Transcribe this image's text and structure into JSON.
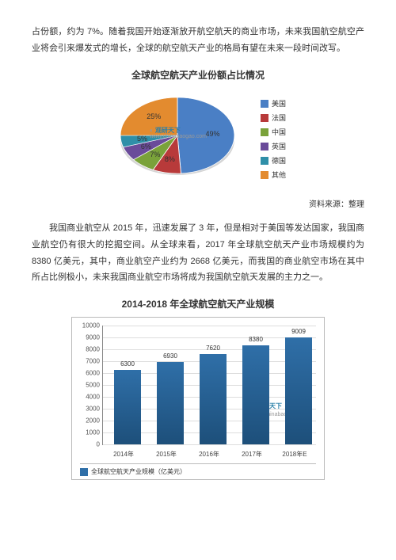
{
  "para1": "占份额，约为 7%。随着我国开始逐渐放开航空航天的商业市场，未来我国航空航空产业将会引来爆发式的增长，全球的航空航天产业的格局有望在未来一段时间改写。",
  "para2": "我国商业航空从 2015 年，迅速发展了 3 年，但是相对于美国等发达国家，我国商业航空仍有很大的挖掘空间。从全球来看，2017 年全球航空航天产业市场规模约为 8380 亿美元，其中，商业航空产业约为 2668 亿美元，而我国的商业航空市场在其中所占比例极小，未来我国商业航空市场将成为我国航空航天发展的主力之一。",
  "source": "资料来源：整理",
  "watermark_cn": "观研天下",
  "watermark_url": "www.chinabaogao.com",
  "pie": {
    "title": "全球航空航天产业份额占比情况",
    "slices": [
      {
        "label": "美国",
        "value": 49,
        "color": "#4a7fc5",
        "lbl": "49%"
      },
      {
        "label": "法国",
        "value": 8,
        "color": "#b83a3a",
        "lbl": "8%"
      },
      {
        "label": "中国",
        "value": 7,
        "color": "#7aa23a",
        "lbl": "7%"
      },
      {
        "label": "英国",
        "value": 6,
        "color": "#6a4b9a",
        "lbl": "6%"
      },
      {
        "label": "德国",
        "value": 5,
        "color": "#2f8fa8",
        "lbl": "5%"
      },
      {
        "label": "其他",
        "value": 25,
        "color": "#e38b2f",
        "lbl": "25%"
      }
    ]
  },
  "bar": {
    "title": "2014-2018 年全球航空航天产业规模",
    "series_label": "全球航空航天产业规模（亿美元）",
    "color": "#2f6fa8",
    "ylim": 10000,
    "ytick_step": 1000,
    "categories": [
      "2014年",
      "2015年",
      "2016年",
      "2017年",
      "2018年E"
    ],
    "values": [
      6300,
      6930,
      7620,
      8380,
      9009
    ]
  }
}
